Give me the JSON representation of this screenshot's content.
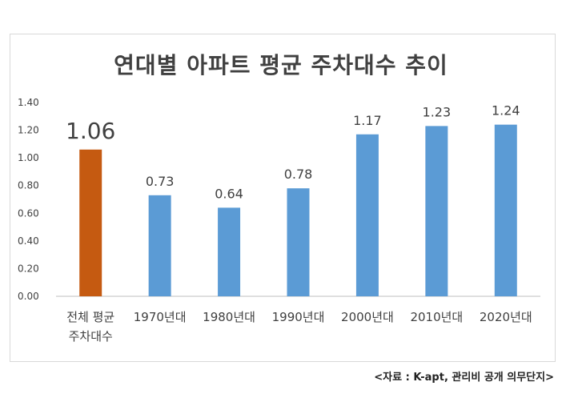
{
  "chart_data": {
    "type": "bar",
    "title": "연대별 아파트 평균 주차대수 추이",
    "categories": [
      [
        "전체 평균",
        "주차대수"
      ],
      [
        "1970년대"
      ],
      [
        "1980년대"
      ],
      [
        "1990년대"
      ],
      [
        "2000년대"
      ],
      [
        "2010년대"
      ],
      [
        "2020년대"
      ]
    ],
    "values": [
      1.06,
      0.73,
      0.64,
      0.78,
      1.17,
      1.23,
      1.24
    ],
    "value_labels": [
      "1.06",
      "0.73",
      "0.64",
      "0.78",
      "1.17",
      "1.23",
      "1.24"
    ],
    "bar_colors": [
      "#c55a11",
      "#5b9bd5",
      "#5b9bd5",
      "#5b9bd5",
      "#5b9bd5",
      "#5b9bd5",
      "#5b9bd5"
    ],
    "ylim": [
      0,
      1.4
    ],
    "yticks": [
      "0.00",
      "0.20",
      "0.40",
      "0.60",
      "0.80",
      "1.00",
      "1.20",
      "1.40"
    ],
    "grid": false,
    "xlabel": "",
    "ylabel": ""
  },
  "source": "<자료 : K-apt, 관리비 공개 의무단지>"
}
